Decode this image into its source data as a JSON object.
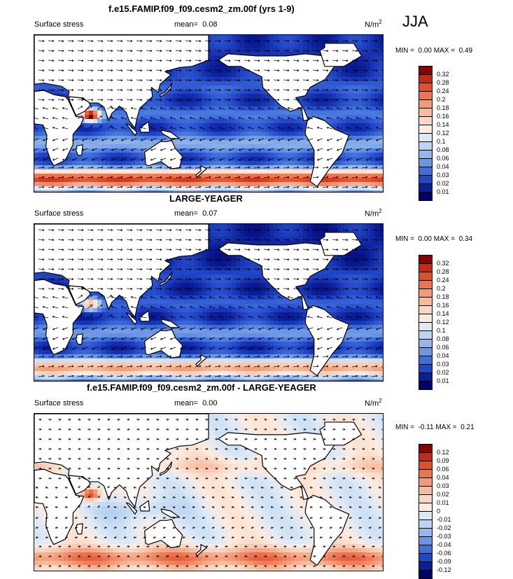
{
  "season": "JJA",
  "panels": [
    {
      "id": "p1",
      "title": "f.e15.FAMIP.f09_f09.cesm2_zm.00f (yrs 1-9)",
      "left_label": "Surface stress",
      "mean_label": "mean=",
      "mean_value": "0.08",
      "units": "N/m",
      "units_sup": "2",
      "min_label": "MIN =",
      "min_value": "0.00",
      "max_label": "MAX =",
      "max_value": "0.49",
      "colorbar_levels": [
        "0.32",
        "0.28",
        "0.24",
        "0.2",
        "0.18",
        "0.16",
        "0.14",
        "0.12",
        "0.1",
        "0.08",
        "0.06",
        "0.04",
        "0.03",
        "0.02",
        "0.01"
      ],
      "colorbar_colors": [
        "#8b0000",
        "#c8281a",
        "#e0502c",
        "#ee7450",
        "#f59a78",
        "#f8bb9e",
        "#fbd6c2",
        "#fdebdf",
        "#dce9f7",
        "#bdd5f2",
        "#94b8ec",
        "#6a96e4",
        "#3f6fdd",
        "#2146c8",
        "#0b1f9a",
        "#00006e"
      ]
    },
    {
      "id": "p2",
      "title": "LARGE-YEAGER",
      "left_label": "Surface stress",
      "mean_label": "mean=",
      "mean_value": "0.07",
      "units": "N/m",
      "units_sup": "2",
      "min_label": "MIN =",
      "min_value": "0.00",
      "max_label": "MAX =",
      "max_value": "0.34",
      "colorbar_levels": [
        "0.32",
        "0.28",
        "0.24",
        "0.2",
        "0.18",
        "0.16",
        "0.14",
        "0.12",
        "0.1",
        "0.08",
        "0.06",
        "0.04",
        "0.03",
        "0.02",
        "0.01"
      ],
      "colorbar_colors": [
        "#8b0000",
        "#c8281a",
        "#e0502c",
        "#ee7450",
        "#f59a78",
        "#f8bb9e",
        "#fbd6c2",
        "#fdebdf",
        "#dce9f7",
        "#bdd5f2",
        "#94b8ec",
        "#6a96e4",
        "#3f6fdd",
        "#2146c8",
        "#0b1f9a",
        "#00006e"
      ]
    },
    {
      "id": "p3",
      "title": "f.e15.FAMIP.f09_f09.cesm2_zm.00f - LARGE-YEAGER",
      "left_label": "Surface stress",
      "mean_label": "mean=",
      "mean_value": "0.00",
      "units": "N/m",
      "units_sup": "2",
      "min_label": "MIN =",
      "min_value": "-0.11",
      "max_label": "MAX =",
      "max_value": "0.21",
      "colorbar_levels": [
        "0.12",
        "0.09",
        "0.06",
        "0.04",
        "0.03",
        "0.02",
        "0.01",
        "0",
        "-0.01",
        "-0.02",
        "-0.03",
        "-0.04",
        "-0.06",
        "-0.09",
        "-0.12"
      ],
      "colorbar_colors": [
        "#8b0000",
        "#c8281a",
        "#e0502c",
        "#ee7450",
        "#f59a78",
        "#f8bb9e",
        "#fbd6c2",
        "#fdebdf",
        "#dce9f7",
        "#bdd5f2",
        "#94b8ec",
        "#6a96e4",
        "#3f6fdd",
        "#2146c8",
        "#0b1f9a",
        "#00006e"
      ]
    }
  ],
  "chart_data": [
    {
      "type": "heatmap",
      "title": "f.e15.FAMIP.f09_f09.cesm2_zm.00f (yrs 1-9)",
      "variable": "Surface stress",
      "season": "JJA",
      "units": "N/m2",
      "mean": 0.08,
      "min": 0.0,
      "max": 0.49,
      "contour_levels": [
        0.01,
        0.02,
        0.03,
        0.04,
        0.06,
        0.08,
        0.1,
        0.12,
        0.14,
        0.16,
        0.18,
        0.2,
        0.24,
        0.28,
        0.32
      ],
      "xlim": [
        0,
        360
      ],
      "ylim": [
        -60,
        90
      ],
      "features": [
        "strong Southern Ocean westerly stress (>0.2)",
        "Arabian Sea monsoon jet up to ~0.32",
        "weak stress over tropical and North Pacific (0.02-0.08)"
      ]
    },
    {
      "type": "heatmap",
      "title": "LARGE-YEAGER",
      "variable": "Surface stress",
      "season": "JJA",
      "units": "N/m2",
      "mean": 0.07,
      "min": 0.0,
      "max": 0.34,
      "contour_levels": [
        0.01,
        0.02,
        0.03,
        0.04,
        0.06,
        0.08,
        0.1,
        0.12,
        0.14,
        0.16,
        0.18,
        0.2,
        0.24,
        0.28,
        0.32
      ],
      "xlim": [
        0,
        360
      ],
      "ylim": [
        -60,
        90
      ],
      "features": [
        "Southern Ocean maximum ~0.2-0.28",
        "Arabian Sea jet ~0.2",
        "weak tropical stress"
      ]
    },
    {
      "type": "heatmap",
      "title": "f.e15.FAMIP.f09_f09.cesm2_zm.00f - LARGE-YEAGER",
      "variable": "Surface stress",
      "season": "JJA",
      "units": "N/m2",
      "mean": 0.0,
      "min": -0.11,
      "max": 0.21,
      "contour_levels": [
        -0.12,
        -0.09,
        -0.06,
        -0.04,
        -0.03,
        -0.02,
        -0.01,
        0,
        0.01,
        0.02,
        0.03,
        0.04,
        0.06,
        0.09,
        0.12
      ],
      "xlim": [
        0,
        360
      ],
      "ylim": [
        -60,
        90
      ],
      "features": [
        "positive difference along Southern Ocean (~0.04-0.09)",
        "Arabian Sea up to ~0.12",
        "negative difference in tropical Indian/West Pacific (~-0.02)"
      ]
    }
  ]
}
